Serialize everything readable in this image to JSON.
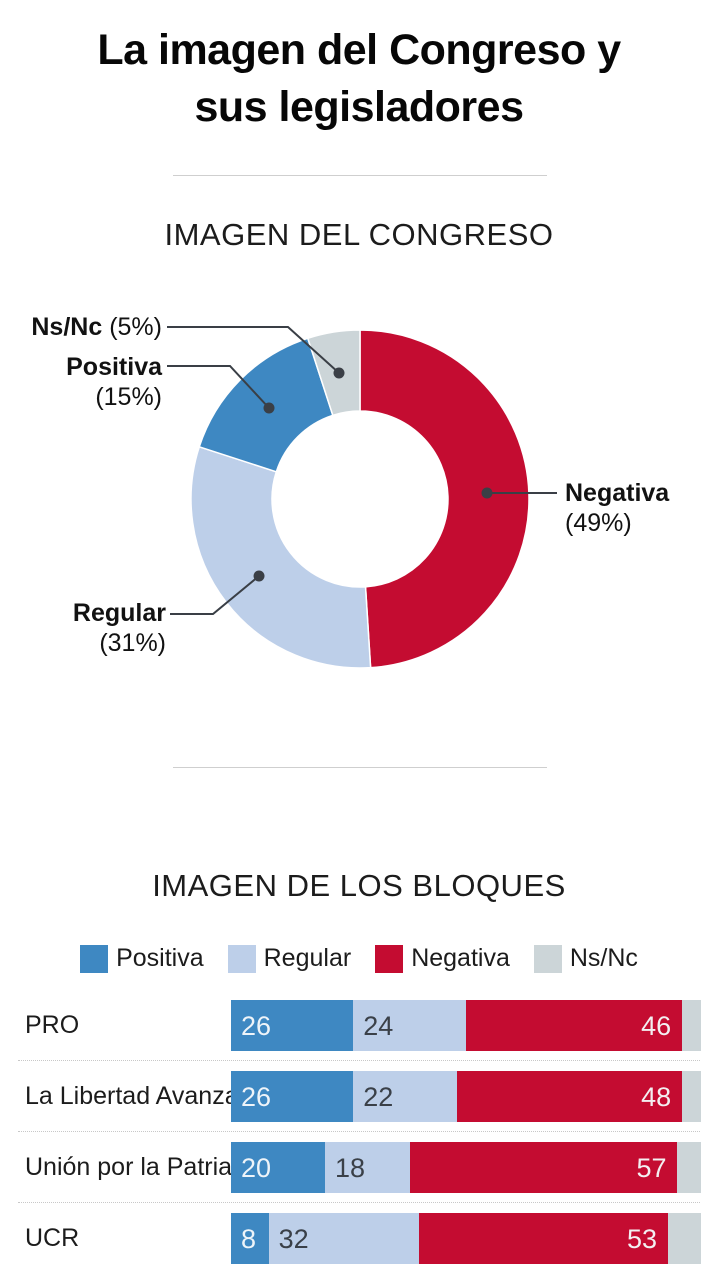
{
  "header": {
    "title": "La imagen del Congreso y sus legisladores",
    "title_lines": [
      "La imagen del Congreso y",
      "sus legisladores"
    ]
  },
  "congress_section": {
    "heading": "IMAGEN DEL CONGRESO"
  },
  "blocks_section": {
    "heading": "IMAGEN DE LOS BLOQUES"
  },
  "colors": {
    "positiva": "#3e88c2",
    "regular": "#bdcfe9",
    "negativa": "#c40c31",
    "nsnc": "#ccd5d8",
    "leader_line": "#3a3f46",
    "divider": "#cfcfcf"
  },
  "donut_callouts": {
    "nsnc": {
      "name": "Ns/Nc",
      "pct": "(5%)"
    },
    "positiva": {
      "name": "Positiva",
      "pct": "(15%)"
    },
    "regular": {
      "name": "Regular",
      "pct": "(31%)"
    },
    "negativa": {
      "name": "Negativa",
      "pct": "(49%)"
    }
  },
  "chart_data": [
    {
      "type": "pie",
      "subtype": "donut",
      "title": "IMAGEN DEL CONGRESO",
      "start_angle": "top",
      "direction": "clockwise",
      "labels": [
        "Negativa",
        "Regular",
        "Positiva",
        "Ns/Nc"
      ],
      "values": [
        49,
        31,
        15,
        5
      ],
      "colors": [
        "#c40c31",
        "#bdcfe9",
        "#3e88c2",
        "#ccd5d8"
      ],
      "label_format": "Name (value%)",
      "legend_position": "callouts"
    },
    {
      "type": "bar",
      "orientation": "horizontal",
      "stacked": true,
      "title": "IMAGEN DE LOS BLOQUES",
      "categories": [
        "PRO",
        "La Libertad Avanza",
        "Unión por la Patria",
        "UCR"
      ],
      "series": [
        {
          "name": "Positiva",
          "color": "#3e88c2",
          "values": [
            26,
            26,
            20,
            8
          ],
          "value_shown": true,
          "value_color": "#eef4f9",
          "value_align": "left"
        },
        {
          "name": "Regular",
          "color": "#bdcfe9",
          "values": [
            24,
            22,
            18,
            32
          ],
          "value_shown": true,
          "value_color": "#3a4048",
          "value_align": "left"
        },
        {
          "name": "Negativa",
          "color": "#c40c31",
          "values": [
            46,
            48,
            57,
            53
          ],
          "value_shown": true,
          "value_color": "#f3eff1",
          "value_align": "right"
        },
        {
          "name": "Ns/Nc",
          "color": "#ccd5d8",
          "values": [
            4,
            4,
            5,
            7
          ],
          "value_shown": false,
          "value_color": "#3a4048",
          "value_align": "left"
        }
      ],
      "xlim": [
        0,
        100
      ],
      "grid": false,
      "legend": [
        "Positiva",
        "Regular",
        "Negativa",
        "Ns/Nc"
      ],
      "legend_position": "top"
    }
  ]
}
